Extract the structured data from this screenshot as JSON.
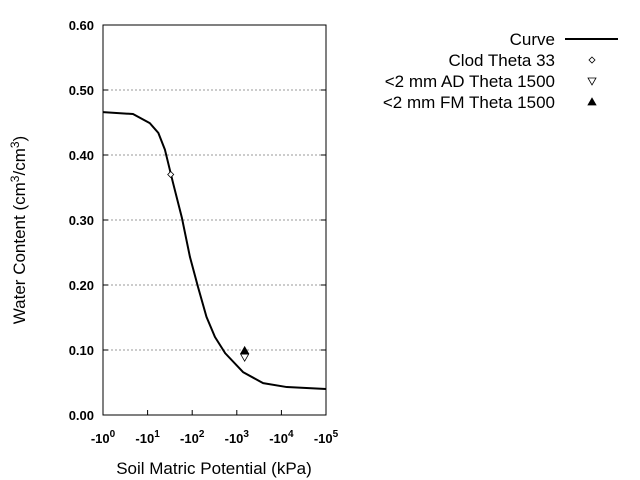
{
  "chart_data": {
    "type": "line",
    "xlabel": "Soil Matric Potential (kPa)",
    "ylabel_main": "Water Content (cm",
    "ylabel_sup1": "3",
    "ylabel_mid": "/cm",
    "ylabel_sup2": "3",
    "ylabel_end": ")",
    "x_scale": "log",
    "xlim": [
      1,
      100000
    ],
    "ylim": [
      0,
      0.6
    ],
    "x_ticks": [
      {
        "base": "-10",
        "exp": "0"
      },
      {
        "base": "-10",
        "exp": "1"
      },
      {
        "base": "-10",
        "exp": "2"
      },
      {
        "base": "-10",
        "exp": "3"
      },
      {
        "base": "-10",
        "exp": "4"
      },
      {
        "base": "-10",
        "exp": "5"
      }
    ],
    "y_ticks": [
      "0.00",
      "0.10",
      "0.20",
      "0.30",
      "0.40",
      "0.50",
      "0.60"
    ],
    "grid": "horizontal dotted",
    "legend_placement": "right",
    "series": [
      {
        "name": "Curve",
        "style": "line",
        "color": "#000000",
        "x": [
          1,
          4.7,
          11.2,
          17.4,
          24.5,
          37.2,
          58.9,
          89.1,
          135,
          209,
          324,
          550,
          1380,
          3890,
          13200,
          100000
        ],
        "y": [
          0.466,
          0.463,
          0.449,
          0.434,
          0.408,
          0.357,
          0.303,
          0.243,
          0.197,
          0.151,
          0.12,
          0.095,
          0.066,
          0.049,
          0.043,
          0.04
        ]
      },
      {
        "name": "Clod Theta 33",
        "style": "open-diamond",
        "x": [
          33
        ],
        "y": [
          0.37
        ]
      },
      {
        "name": "<2 mm AD Theta 1500",
        "style": "open-down-triangle",
        "x": [
          1500
        ],
        "y": [
          0.089
        ]
      },
      {
        "name": "<2 mm FM Theta 1500",
        "style": "filled-up-triangle",
        "x": [
          1500
        ],
        "y": [
          0.099
        ]
      }
    ]
  }
}
